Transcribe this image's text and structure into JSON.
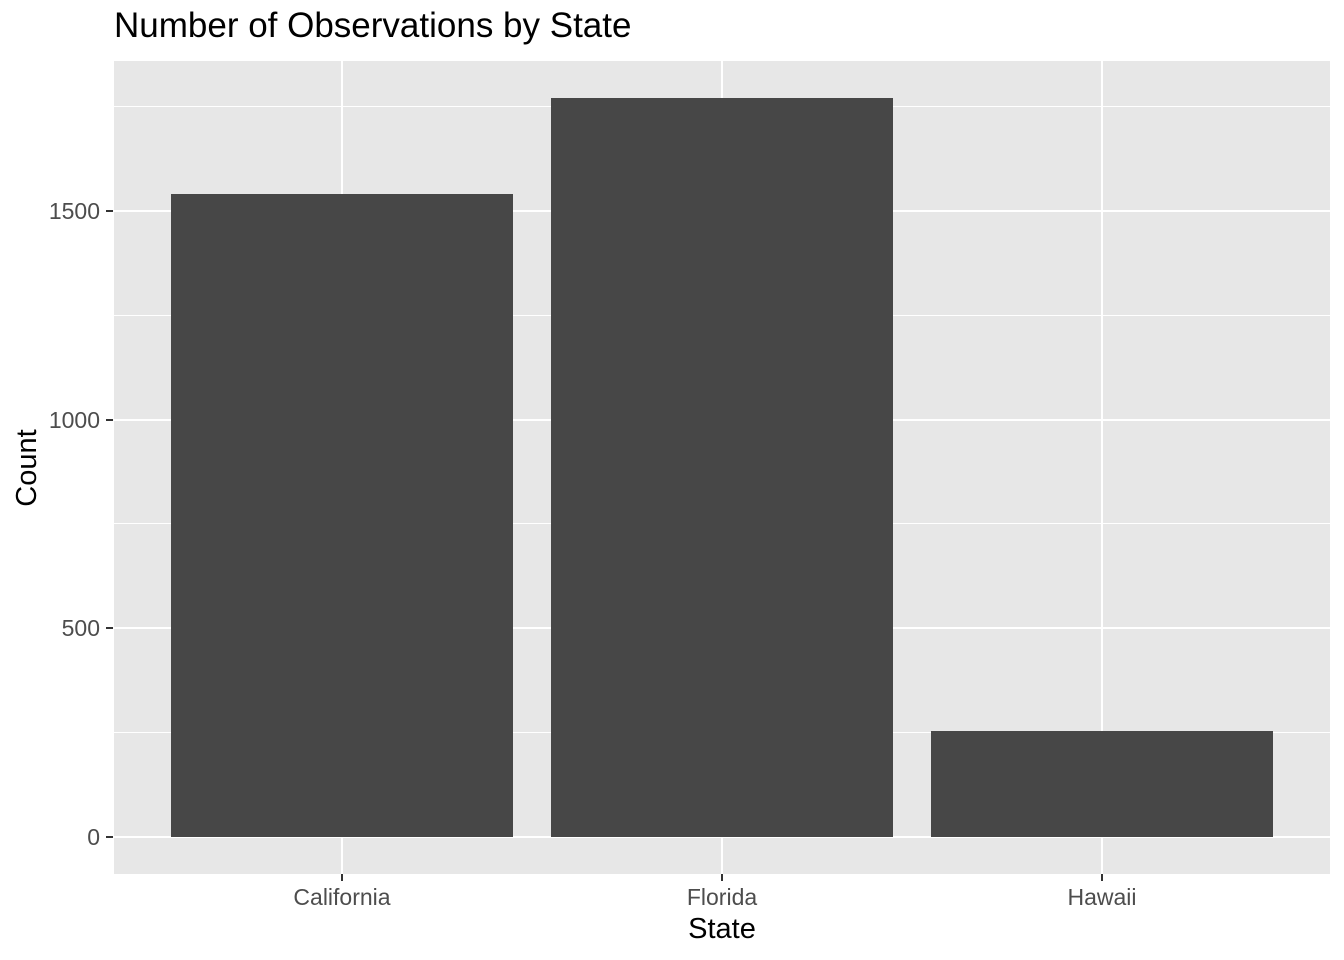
{
  "title": "Number of Observations by State",
  "chart_data": {
    "type": "bar",
    "title": "Number of Observations by State",
    "xlabel": "State",
    "ylabel": "Count",
    "categories": [
      "California",
      "Florida",
      "Hawaii"
    ],
    "values": [
      1540,
      1770,
      255
    ],
    "yticks": [
      0,
      500,
      1000,
      1500
    ],
    "yticks_minor": [
      250,
      750,
      1250,
      1750
    ],
    "ylim": [
      -88.5,
      1858.5
    ],
    "grid": "major-and-minor, white on gray panel",
    "legend": false,
    "colors": {
      "bar_fill": "#474747",
      "panel_background": "#e7e7e7",
      "gridline": "#ffffff",
      "tick_label": "#4d4d4d",
      "tick_mark": "#333333",
      "axis_title": "#000000",
      "title": "#000000",
      "figure_background": "#ffffff"
    }
  }
}
